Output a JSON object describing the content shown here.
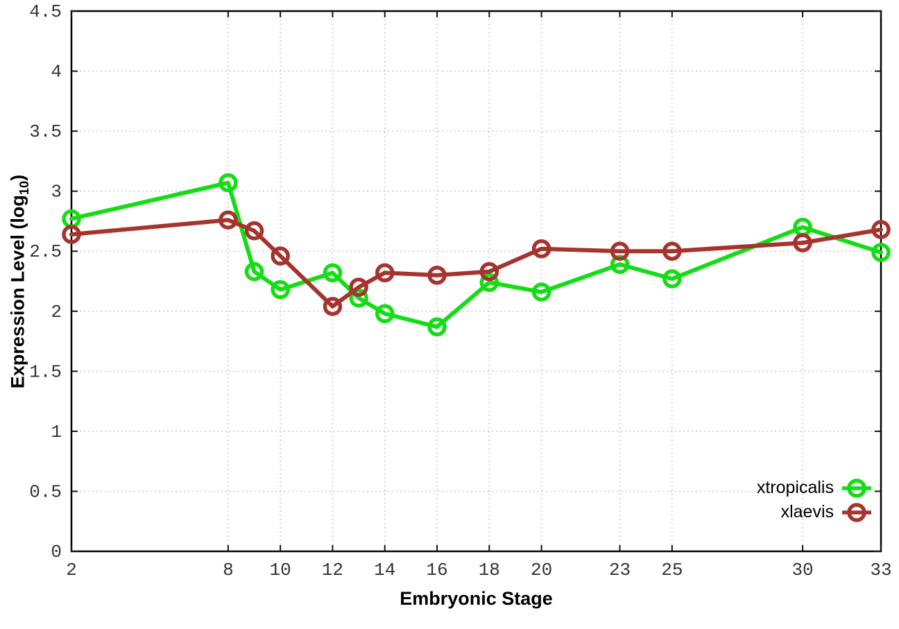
{
  "figure": {
    "xlabel": "Embryonic Stage",
    "ylabel_prefix": "Expression Level (log",
    "ylabel_sub": "10",
    "ylabel_suffix": ")"
  },
  "chart_data": {
    "type": "line",
    "title": "",
    "xlabel": "Embryonic Stage",
    "ylabel": "Expression Level (log10)",
    "x": [
      2,
      8,
      9,
      10,
      12,
      13,
      14,
      16,
      18,
      20,
      23,
      25,
      30,
      33
    ],
    "series": [
      {
        "name": "xtropicalis",
        "color": "#15dd15",
        "values": [
          2.77,
          3.07,
          2.33,
          2.18,
          2.32,
          2.11,
          1.98,
          1.87,
          2.24,
          2.16,
          2.39,
          2.27,
          2.7,
          2.49
        ]
      },
      {
        "name": "xlaevis",
        "color": "#a5342e",
        "values": [
          2.64,
          2.76,
          2.67,
          2.46,
          2.04,
          2.2,
          2.32,
          2.3,
          2.33,
          2.52,
          2.5,
          2.5,
          2.57,
          2.68
        ]
      }
    ],
    "xlim": [
      2,
      33
    ],
    "ylim": [
      0,
      4.5
    ],
    "x_ticks": [
      2,
      8,
      10,
      12,
      14,
      16,
      18,
      20,
      23,
      25,
      30,
      33
    ],
    "y_ticks": [
      0,
      0.5,
      1,
      1.5,
      2,
      2.5,
      3,
      3.5,
      4,
      4.5
    ],
    "grid": true,
    "grid_color": "#c8c8c8",
    "border_color": "#000000",
    "tick_label_color": "#333333",
    "legend_position": "bottom-right",
    "marker": "open-circle"
  }
}
